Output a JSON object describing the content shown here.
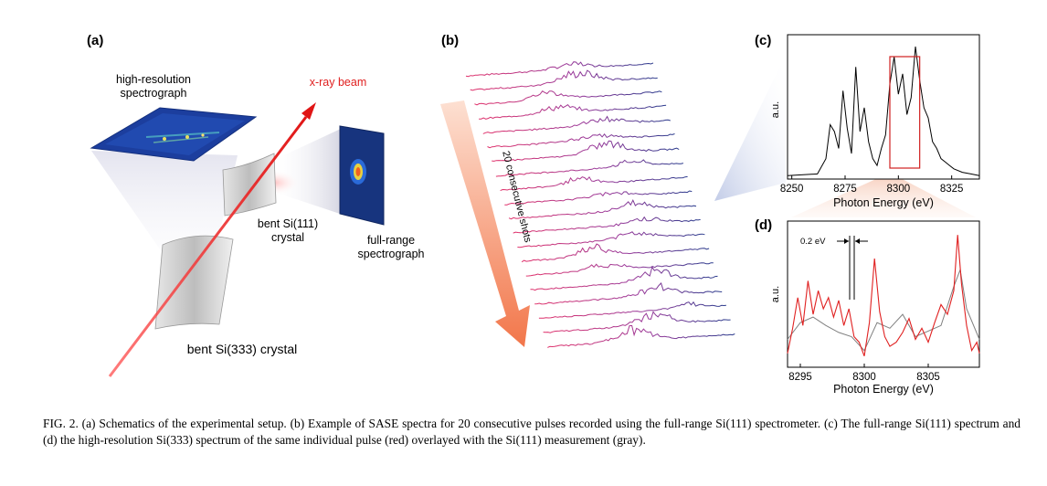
{
  "panel_labels": {
    "a": "(a)",
    "b": "(b)",
    "c": "(c)",
    "d": "(d)"
  },
  "setup": {
    "hr_spectrograph": "high-resolution\nspectrograph",
    "xray_beam": "x-ray beam",
    "si111": "bent Si(111)\ncrystal",
    "fr_spectrograph": "full-range\nspectrograph",
    "si333": "bent Si(333) crystal"
  },
  "spectra_stack": {
    "arrow_label": "20 consecutive shots",
    "count": 20
  },
  "caption": "FIG. 2. (a) Schematics of the experimental setup. (b) Example of SASE spectra for 20 consecutive pulses recorded using the full-range Si(111) spectrometer. (c) The full-range Si(111) spectrum and (d) the high-resolution Si(333) spectrum of the same individual pulse (red) overlayed with the Si(111) measurement (gray).",
  "colors": {
    "red": "#e02020",
    "blue": "#2a3a8c",
    "magenta": "#d0206a",
    "gray": "#808080",
    "accent": "#f2a184"
  },
  "chart_data": [
    {
      "type": "line",
      "panel": "(c)",
      "xlabel": "Photon Energy (eV)",
      "ylabel": "a.u.",
      "xlim": [
        8248,
        8338
      ],
      "xticks": [
        8250,
        8275,
        8300,
        8325
      ],
      "series": [
        {
          "color": "#000000",
          "x": [
            8248,
            8262,
            8266,
            8268,
            8270,
            8272,
            8274,
            8276,
            8278,
            8280,
            8282,
            8284,
            8286,
            8288,
            8290,
            8292,
            8294,
            8296,
            8298,
            8300,
            8302,
            8304,
            8306,
            8308,
            8310,
            8312,
            8314,
            8316,
            8318,
            8320,
            8322,
            8324,
            8326,
            8330,
            8334,
            8338
          ],
          "y": [
            0.02,
            0.03,
            0.12,
            0.32,
            0.28,
            0.18,
            0.52,
            0.3,
            0.15,
            0.66,
            0.28,
            0.42,
            0.22,
            0.12,
            0.08,
            0.18,
            0.26,
            0.56,
            0.72,
            0.5,
            0.62,
            0.38,
            0.48,
            0.78,
            0.58,
            0.42,
            0.36,
            0.22,
            0.18,
            0.12,
            0.1,
            0.08,
            0.06,
            0.04,
            0.03,
            0.02
          ]
        }
      ],
      "inset_window": [
        8296,
        8310
      ]
    },
    {
      "type": "line",
      "panel": "(d)",
      "xlabel": "Photon Energy (eV)",
      "ylabel": "a.u.",
      "xlim": [
        8294,
        8309
      ],
      "xticks": [
        8295,
        8300,
        8305
      ],
      "annotation": "0.2 eV",
      "series": [
        {
          "color": "#808080",
          "x": [
            8294,
            8295,
            8296,
            8297,
            8298,
            8299,
            8300,
            8301,
            8302,
            8303,
            8304,
            8305,
            8306,
            8307,
            8307.5,
            8308,
            8309
          ],
          "y": [
            0.2,
            0.32,
            0.36,
            0.3,
            0.25,
            0.22,
            0.12,
            0.32,
            0.28,
            0.38,
            0.22,
            0.26,
            0.3,
            0.58,
            0.7,
            0.42,
            0.2
          ]
        },
        {
          "color": "#e02020",
          "x": [
            8294,
            8294.4,
            8294.8,
            8295.2,
            8295.6,
            8296,
            8296.4,
            8296.8,
            8297.2,
            8297.6,
            8298,
            8298.4,
            8298.8,
            8299.2,
            8299.6,
            8300,
            8300.4,
            8300.8,
            8301.2,
            8301.6,
            8302,
            8302.5,
            8303,
            8303.5,
            8304,
            8304.5,
            8305,
            8305.5,
            8306,
            8306.5,
            8307,
            8307.3,
            8307.6,
            8308,
            8308.4,
            8308.8,
            8309
          ],
          "y": [
            0.1,
            0.28,
            0.5,
            0.3,
            0.62,
            0.38,
            0.55,
            0.42,
            0.5,
            0.36,
            0.48,
            0.3,
            0.42,
            0.22,
            0.18,
            0.08,
            0.32,
            0.78,
            0.4,
            0.22,
            0.15,
            0.18,
            0.25,
            0.35,
            0.2,
            0.28,
            0.18,
            0.32,
            0.45,
            0.38,
            0.55,
            0.95,
            0.6,
            0.3,
            0.12,
            0.18,
            0.1
          ]
        }
      ]
    }
  ]
}
